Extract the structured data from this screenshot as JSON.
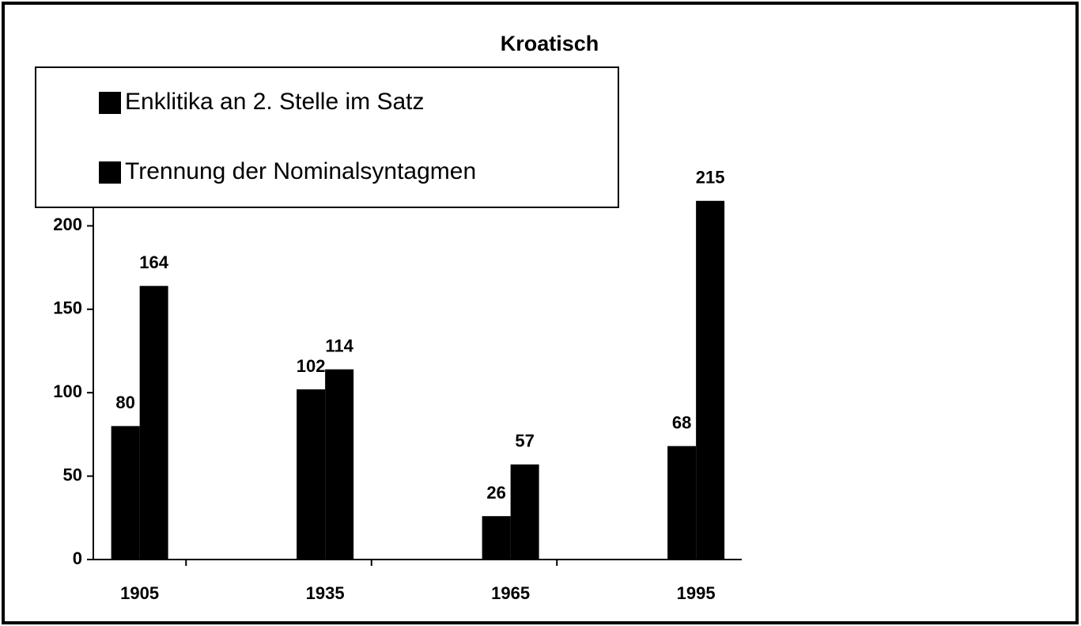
{
  "chart_data": {
    "type": "bar",
    "title": "Kroatisch",
    "categories": [
      "1905",
      "1935",
      "1965",
      "1995"
    ],
    "series": [
      {
        "name": "Enklitika an 2. Stelle im Satz",
        "color": "#000000",
        "values": [
          80,
          102,
          26,
          68
        ]
      },
      {
        "name": "Trennung der Nominalsyntagmen",
        "color": "#000000",
        "values": [
          164,
          114,
          57,
          215
        ]
      }
    ],
    "ylim": [
      0,
      250
    ],
    "yticks": [
      0,
      50,
      100,
      150,
      200
    ],
    "grid": false,
    "legend": "top-left"
  }
}
